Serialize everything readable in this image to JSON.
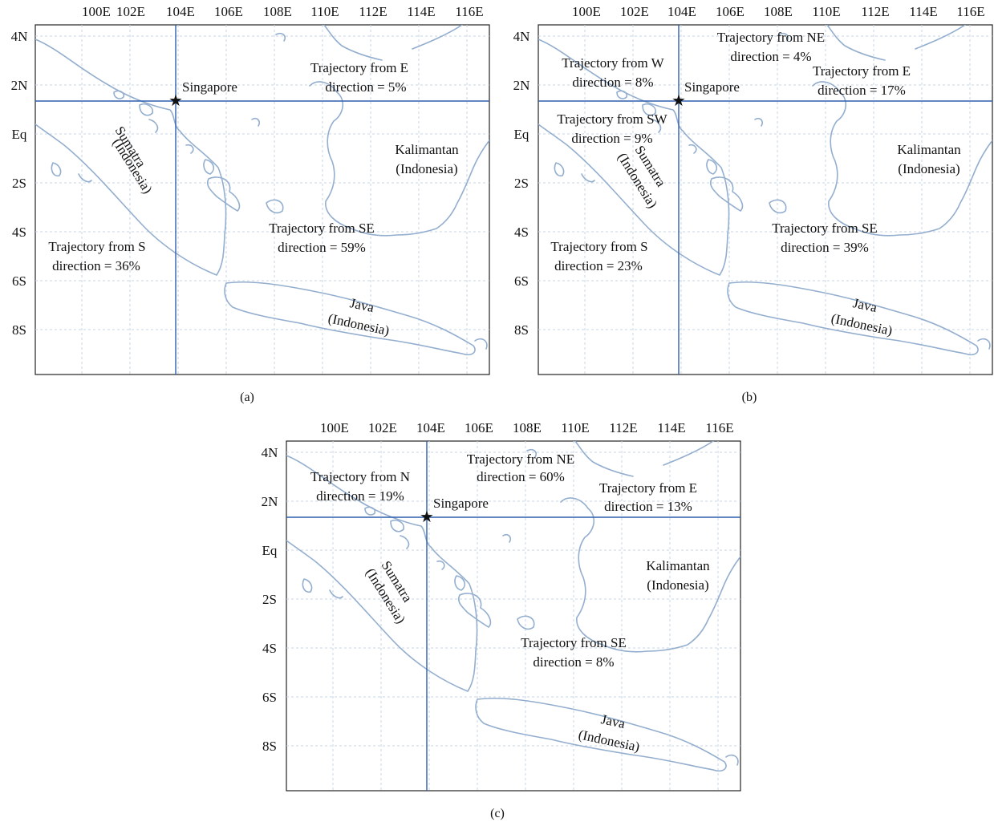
{
  "longitude_labels": [
    "100E",
    "102E",
    "104E",
    "106E",
    "108E",
    "110E",
    "112E",
    "114E",
    "116E"
  ],
  "latitude_labels": [
    "4N",
    "2N",
    "Eq",
    "2S",
    "4S",
    "6S",
    "8S"
  ],
  "station": {
    "name": "Singapore",
    "marker": "star-icon",
    "lon": 103.8,
    "lat": 1.3
  },
  "places": {
    "sumatra": [
      "Sumatra",
      "(Indonesia)"
    ],
    "kalimantan": [
      "Kalimantan",
      "(Indonesia)"
    ],
    "java": [
      "Java",
      "(Indonesia)"
    ]
  },
  "colors": {
    "coastline": "#93aece",
    "crosshair": "#2f5fae",
    "grid": "#c9d6e6"
  },
  "panels": [
    {
      "id": "a",
      "caption": "(a)",
      "trajectories": [
        {
          "line1": "Trajectory from E",
          "line2": "direction = 5%"
        },
        {
          "line1": "Trajectory from SE",
          "line2": "direction = 59%"
        },
        {
          "line1": "Trajectory from S",
          "line2": "direction = 36%"
        }
      ]
    },
    {
      "id": "b",
      "caption": "(b)",
      "trajectories": [
        {
          "line1": "Trajectory from NE",
          "line2": "direction = 4%"
        },
        {
          "line1": "Trajectory from W",
          "line2": "direction = 8%"
        },
        {
          "line1": "Trajectory from E",
          "line2": "direction = 17%"
        },
        {
          "line1": "Trajectory from SW",
          "line2": "direction = 9%"
        },
        {
          "line1": "Trajectory from SE",
          "line2": "direction = 39%"
        },
        {
          "line1": "Trajectory from S",
          "line2": "direction = 23%"
        }
      ]
    },
    {
      "id": "c",
      "caption": "(c)",
      "trajectories": [
        {
          "line1": "Trajectory from NE",
          "line2": "direction = 60%"
        },
        {
          "line1": "Trajectory from N",
          "line2": "direction = 19%"
        },
        {
          "line1": "Trajectory from E",
          "line2": "direction = 13%"
        },
        {
          "line1": "Trajectory from SE",
          "line2": "direction = 8%"
        }
      ]
    }
  ]
}
